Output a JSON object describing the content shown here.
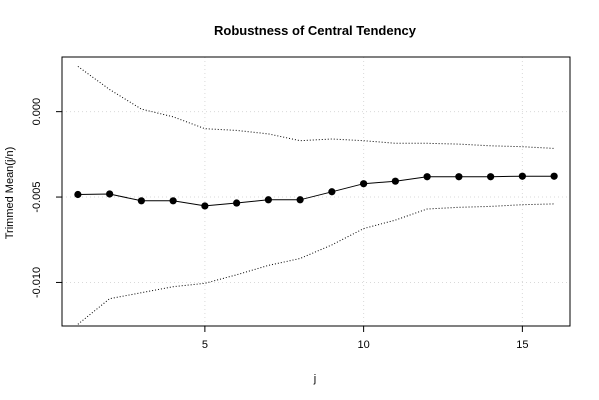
{
  "chart_data": {
    "type": "line",
    "title": "Robustness of Central Tendency",
    "xlabel": "j",
    "ylabel": "Trimmed Mean(j/n)",
    "xlim": [
      0.5,
      16.5
    ],
    "ylim": [
      -0.01255,
      0.0032
    ],
    "x_ticks": [
      5,
      10,
      15
    ],
    "x_tick_labels": [
      "5",
      "10",
      "15"
    ],
    "y_ticks": [
      -0.01,
      -0.005,
      0.0
    ],
    "y_tick_labels": [
      "-0.010",
      "-0.005",
      "0.000"
    ],
    "grid": true,
    "legend": "none",
    "colors": {
      "line": "#000000",
      "band": "#000000",
      "grid": "#d9d9d9",
      "frame": "#000000"
    },
    "series": [
      {
        "role": "trimmed-mean",
        "style": "line-with-points",
        "x": [
          1,
          2,
          3,
          4,
          5,
          6,
          7,
          8,
          9,
          10,
          11,
          12,
          13,
          14,
          15,
          16
        ],
        "values": [
          -0.00485,
          -0.00482,
          -0.00522,
          -0.00522,
          -0.00552,
          -0.00535,
          -0.00516,
          -0.00516,
          -0.00469,
          -0.00422,
          -0.00407,
          -0.00381,
          -0.00381,
          -0.00381,
          -0.00378,
          -0.00378
        ]
      },
      {
        "role": "upper-band",
        "style": "dotted",
        "x": [
          1,
          2,
          3,
          4,
          5,
          6,
          7,
          8,
          9,
          10,
          11,
          12,
          13,
          14,
          15,
          16
        ],
        "values": [
          0.00265,
          0.0013,
          0.00015,
          -0.0003,
          -0.001,
          -0.0011,
          -0.0013,
          -0.0017,
          -0.0016,
          -0.0017,
          -0.00185,
          -0.00185,
          -0.0019,
          -0.002,
          -0.00205,
          -0.00215
        ]
      },
      {
        "role": "lower-band",
        "style": "dotted",
        "x": [
          1,
          2,
          3,
          4,
          5,
          6,
          7,
          8,
          9,
          10,
          11,
          12,
          13,
          14,
          15,
          16
        ],
        "values": [
          -0.01245,
          -0.01095,
          -0.0106,
          -0.01025,
          -0.01005,
          -0.00955,
          -0.009,
          -0.0086,
          -0.0078,
          -0.00685,
          -0.00635,
          -0.0057,
          -0.0056,
          -0.00555,
          -0.00545,
          -0.0054
        ]
      }
    ]
  }
}
